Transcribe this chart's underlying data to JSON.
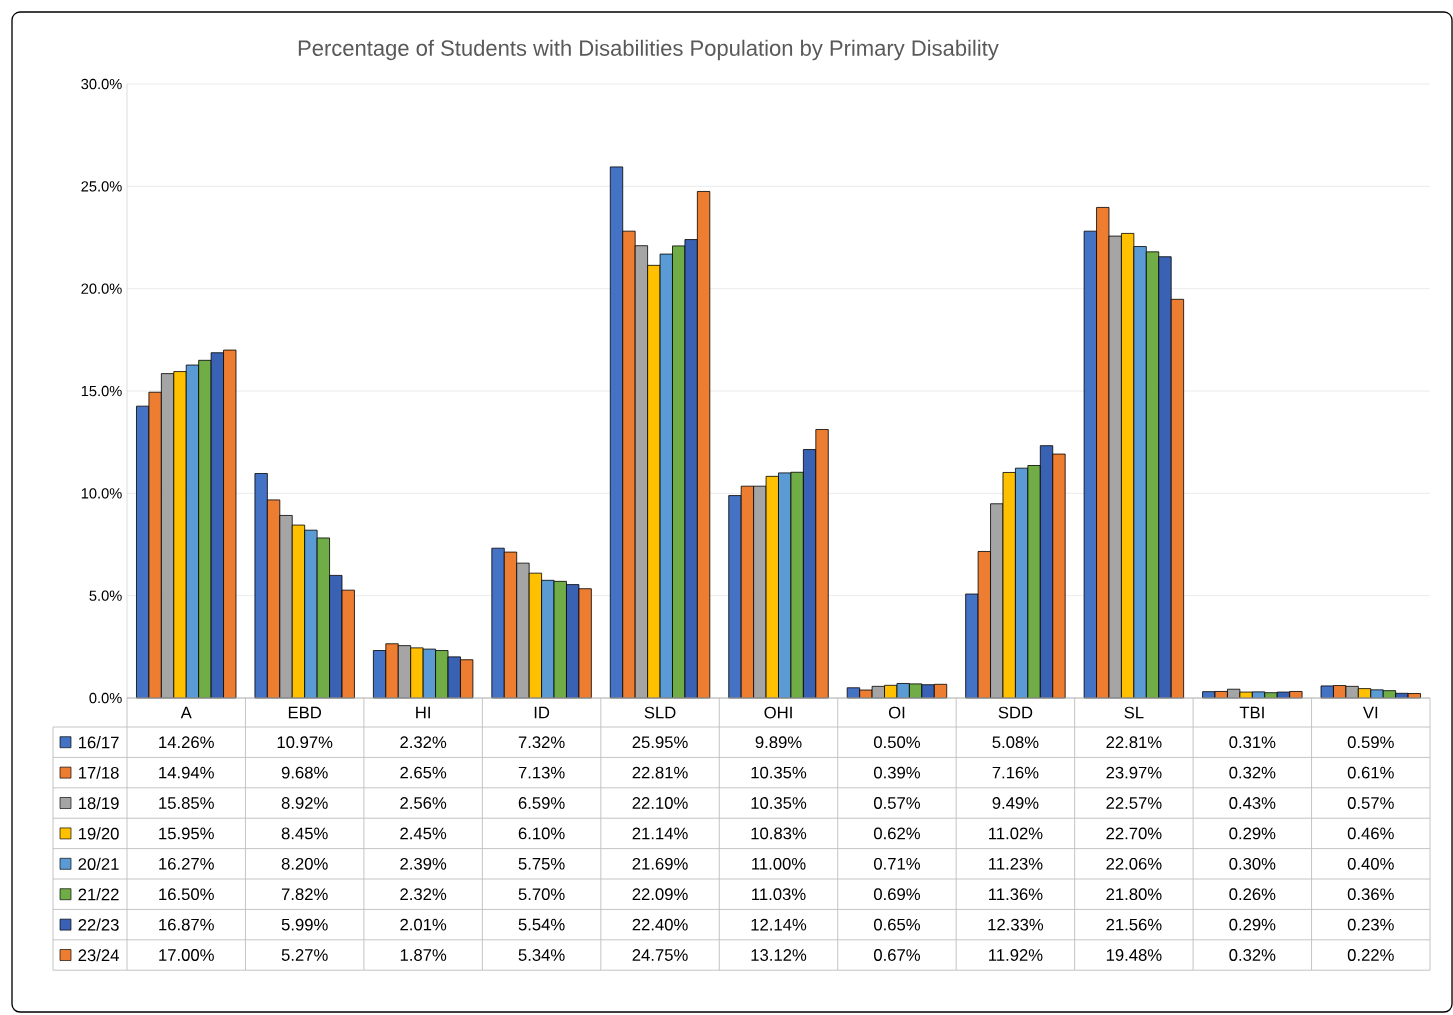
{
  "chart_data": {
    "type": "bar",
    "title": "Percentage of Students with Disabilities Population by Primary Disability",
    "categories": [
      "A",
      "EBD",
      "HI",
      "ID",
      "SLD",
      "OHI",
      "OI",
      "SDD",
      "SL",
      "TBI",
      "VI"
    ],
    "series": [
      {
        "name": "16/17",
        "color": "#4472c4",
        "values": [
          14.26,
          10.97,
          2.32,
          7.32,
          25.95,
          9.89,
          0.5,
          5.08,
          22.81,
          0.31,
          0.59
        ],
        "value_labels": [
          "14.26%",
          "10.97%",
          "2.32%",
          "7.32%",
          "25.95%",
          "9.89%",
          "0.50%",
          "5.08%",
          "22.81%",
          "0.31%",
          "0.59%"
        ]
      },
      {
        "name": "17/18",
        "color": "#ed7d31",
        "values": [
          14.94,
          9.68,
          2.65,
          7.13,
          22.81,
          10.35,
          0.39,
          7.16,
          23.97,
          0.32,
          0.61
        ],
        "value_labels": [
          "14.94%",
          "9.68%",
          "2.65%",
          "7.13%",
          "22.81%",
          "10.35%",
          "0.39%",
          "7.16%",
          "23.97%",
          "0.32%",
          "0.61%"
        ]
      },
      {
        "name": "18/19",
        "color": "#a5a5a5",
        "values": [
          15.85,
          8.92,
          2.56,
          6.59,
          22.1,
          10.35,
          0.57,
          9.49,
          22.57,
          0.43,
          0.57
        ],
        "value_labels": [
          "15.85%",
          "8.92%",
          "2.56%",
          "6.59%",
          "22.10%",
          "10.35%",
          "0.57%",
          "9.49%",
          "22.57%",
          "0.43%",
          "0.57%"
        ]
      },
      {
        "name": "19/20",
        "color": "#ffc000",
        "values": [
          15.95,
          8.45,
          2.45,
          6.1,
          21.14,
          10.83,
          0.62,
          11.02,
          22.7,
          0.29,
          0.46
        ],
        "value_labels": [
          "15.95%",
          "8.45%",
          "2.45%",
          "6.10%",
          "21.14%",
          "10.83%",
          "0.62%",
          "11.02%",
          "22.70%",
          "0.29%",
          "0.46%"
        ]
      },
      {
        "name": "20/21",
        "color": "#5b9bd5",
        "values": [
          16.27,
          8.2,
          2.39,
          5.75,
          21.69,
          11.0,
          0.71,
          11.23,
          22.06,
          0.3,
          0.4
        ],
        "value_labels": [
          "16.27%",
          "8.20%",
          "2.39%",
          "5.75%",
          "21.69%",
          "11.00%",
          "0.71%",
          "11.23%",
          "22.06%",
          "0.30%",
          "0.40%"
        ]
      },
      {
        "name": "21/22",
        "color": "#70ad47",
        "values": [
          16.5,
          7.82,
          2.32,
          5.7,
          22.09,
          11.03,
          0.69,
          11.36,
          21.8,
          0.26,
          0.36
        ],
        "value_labels": [
          "16.50%",
          "7.82%",
          "2.32%",
          "5.70%",
          "22.09%",
          "11.03%",
          "0.69%",
          "11.36%",
          "21.80%",
          "0.26%",
          "0.36%"
        ]
      },
      {
        "name": "22/23",
        "color": "#3a62b4",
        "values": [
          16.87,
          5.99,
          2.01,
          5.54,
          22.4,
          12.14,
          0.65,
          12.33,
          21.56,
          0.29,
          0.23
        ],
        "value_labels": [
          "16.87%",
          "5.99%",
          "2.01%",
          "5.54%",
          "22.40%",
          "12.14%",
          "0.65%",
          "12.33%",
          "21.56%",
          "0.29%",
          "0.23%"
        ]
      },
      {
        "name": "23/24",
        "color": "#ed7d31",
        "values": [
          17.0,
          5.27,
          1.87,
          5.34,
          24.75,
          13.12,
          0.67,
          11.92,
          19.48,
          0.32,
          0.22
        ],
        "value_labels": [
          "17.00%",
          "5.27%",
          "1.87%",
          "5.34%",
          "24.75%",
          "13.12%",
          "0.67%",
          "11.92%",
          "19.48%",
          "0.32%",
          "0.22%"
        ]
      }
    ],
    "ylim": [
      0,
      30
    ],
    "yticks": [
      {
        "value": 0,
        "label": "0.0%"
      },
      {
        "value": 5,
        "label": "5.0%"
      },
      {
        "value": 10,
        "label": "10.0%"
      },
      {
        "value": 15,
        "label": "15.0%"
      },
      {
        "value": 20,
        "label": "20.0%"
      },
      {
        "value": 25,
        "label": "25.0%"
      },
      {
        "value": 30,
        "label": "30.0%"
      }
    ],
    "grid": "y",
    "legend": "bottom"
  }
}
